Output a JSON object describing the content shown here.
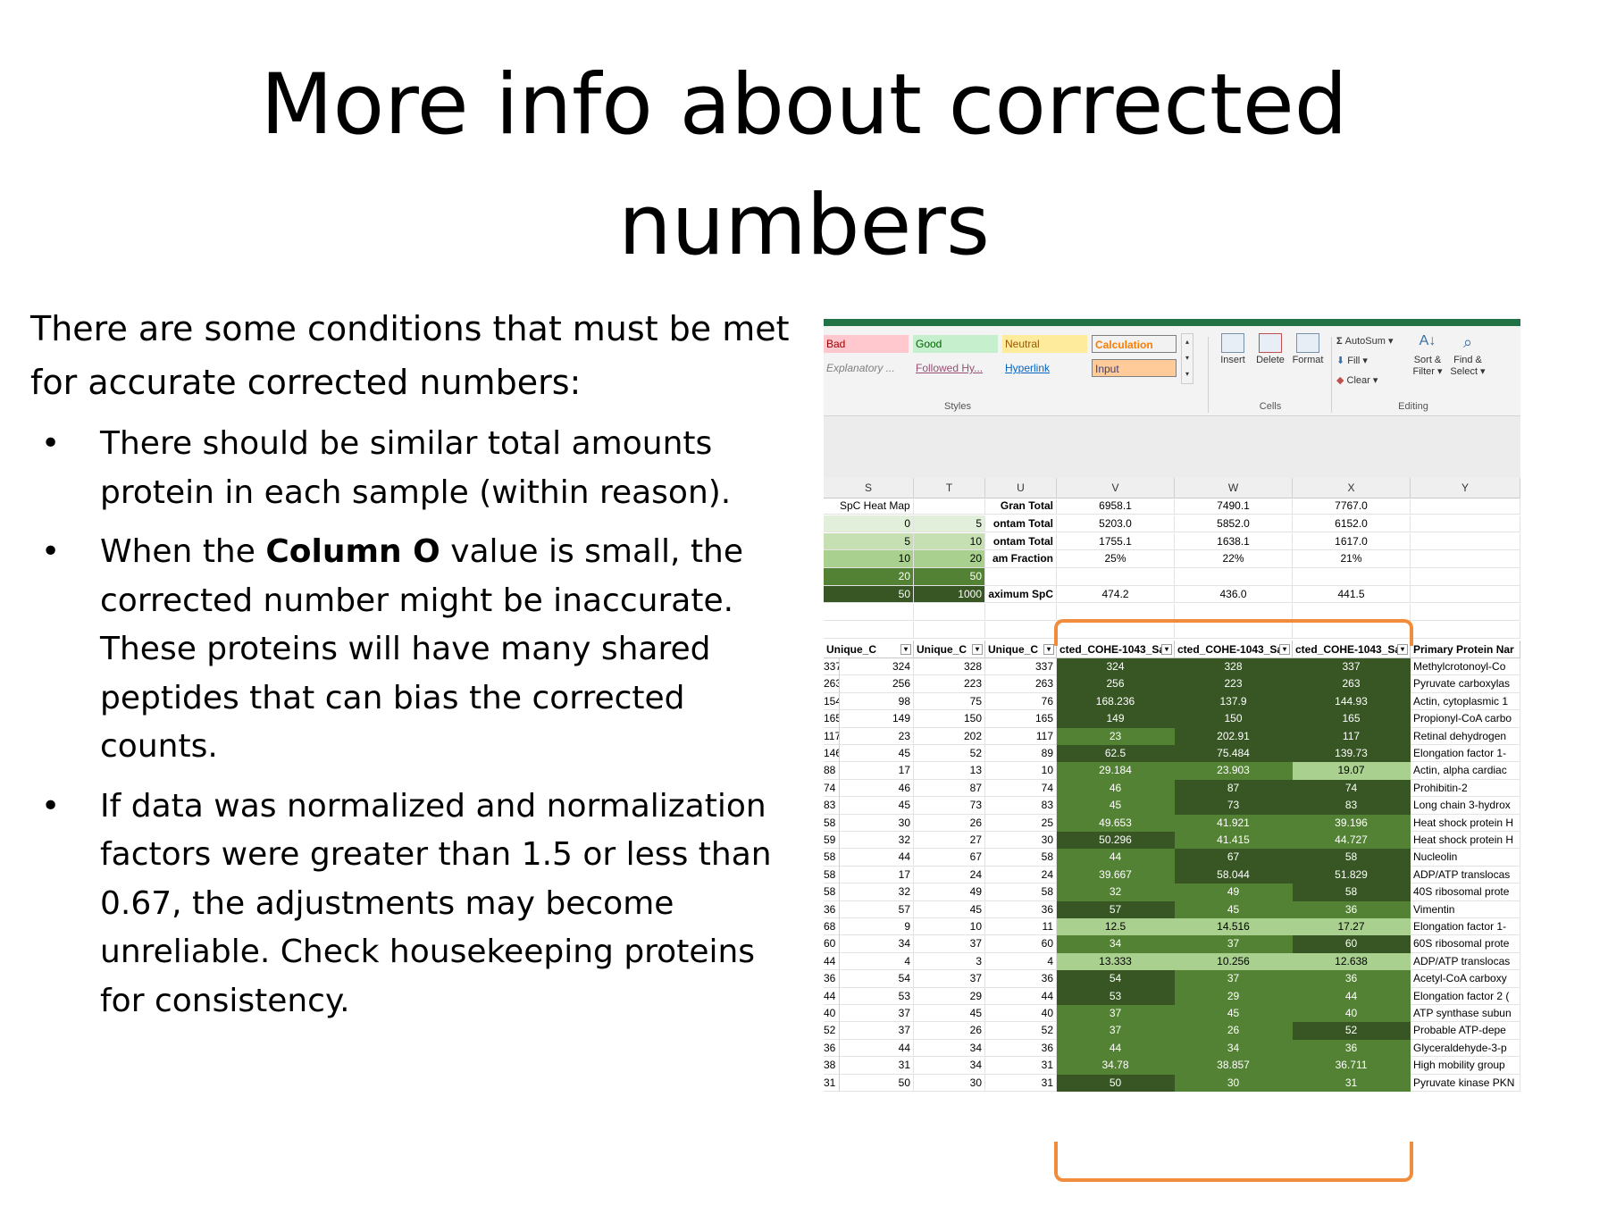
{
  "title": {
    "line1": "More info about corrected",
    "line2": "numbers"
  },
  "intro": "There are some conditions that must be met for accurate corrected numbers:",
  "bullets": {
    "b1": "There should be similar total amounts protein in each sample (within reason).",
    "b2_pre": "When the ",
    "b2_bold": "Column O",
    "b2_post": " value is small, the corrected number might be inaccurate. These proteins will have many shared peptides that can bias the corrected counts.",
    "b3": "If data was normalized and normalization factors were greater than 1.5 or less than 0.67, the adjustments may become unreliable.  Check housekeeping proteins for consistency.",
    "marker": "•"
  },
  "ribbon": {
    "styles": {
      "bad": "Bad",
      "good": "Good",
      "neutral": "Neutral",
      "calculation": "Calculation",
      "explanatory": "Explanatory ...",
      "followed": "Followed Hy...",
      "hyperlink": "Hyperlink",
      "input": "Input",
      "group_label": "Styles"
    },
    "cells": {
      "insert": "Insert",
      "delete": "Delete",
      "format": "Format",
      "group_label": "Cells"
    },
    "editing": {
      "autosum": "AutoSum",
      "fill": "Fill",
      "clear": "Clear",
      "sort": "Sort &",
      "sort2": "Filter",
      "find": "Find &",
      "find2": "Select",
      "group_label": "Editing"
    }
  },
  "colors": {
    "accent": "#217346",
    "bracket": "#f18c3c",
    "heat_dark": "#375623",
    "heat_mid": "#548235",
    "heat_light": "#a9d08e",
    "heat_pale": "#c6e0b4",
    "heat_palest": "#e2efda"
  },
  "columns": [
    "S",
    "T",
    "U",
    "V",
    "W",
    "X",
    "Y"
  ],
  "summary": {
    "heatmap_label": "SpC Heat Map",
    "labels": [
      "Gran Total",
      "ontam Total",
      "ontam Total",
      "am Fraction",
      "",
      "aximum SpC"
    ],
    "V": [
      "6958.1",
      "5203.0",
      "1755.1",
      "25%",
      "",
      "474.2"
    ],
    "W": [
      "7490.1",
      "5852.0",
      "1638.1",
      "22%",
      "",
      "436.0"
    ],
    "X": [
      "7767.0",
      "6152.0",
      "1617.0",
      "21%",
      "",
      "441.5"
    ],
    "heat_S": [
      "0",
      "5",
      "10",
      "20",
      "50"
    ],
    "heat_T": [
      "5",
      "10",
      "20",
      "50",
      "1000"
    ]
  },
  "table_headers": [
    "Unique_C",
    "Unique_C",
    "Unique_C",
    "cted_COHE-1043_Sa",
    "cted_COHE-1043_Sa",
    "cted_COHE-1043_Sa",
    "Primary Protein Nar"
  ],
  "rows": [
    [
      "337",
      "324",
      "328",
      "337",
      "324",
      "328",
      "337",
      "Methylcrotonoyl-Co"
    ],
    [
      "263",
      "256",
      "223",
      "263",
      "256",
      "223",
      "263",
      "Pyruvate carboxylas"
    ],
    [
      "154",
      "98",
      "75",
      "76",
      "168.236",
      "137.9",
      "144.93",
      "Actin, cytoplasmic 1"
    ],
    [
      "165",
      "149",
      "150",
      "165",
      "149",
      "150",
      "165",
      "Propionyl-CoA carbo"
    ],
    [
      "117",
      "23",
      "202",
      "117",
      "23",
      "202.91",
      "117",
      "Retinal dehydrogen"
    ],
    [
      "146",
      "45",
      "52",
      "89",
      "62.5",
      "75.484",
      "139.73",
      "Elongation factor 1-"
    ],
    [
      "88",
      "17",
      "13",
      "10",
      "29.184",
      "23.903",
      "19.07",
      "Actin, alpha cardiac"
    ],
    [
      "74",
      "46",
      "87",
      "74",
      "46",
      "87",
      "74",
      "Prohibitin-2"
    ],
    [
      "83",
      "45",
      "73",
      "83",
      "45",
      "73",
      "83",
      "Long chain 3-hydrox"
    ],
    [
      "58",
      "30",
      "26",
      "25",
      "49.653",
      "41.921",
      "39.196",
      "Heat shock protein H"
    ],
    [
      "59",
      "32",
      "27",
      "30",
      "50.296",
      "41.415",
      "44.727",
      "Heat shock protein H"
    ],
    [
      "58",
      "44",
      "67",
      "58",
      "44",
      "67",
      "58",
      "Nucleolin"
    ],
    [
      "58",
      "17",
      "24",
      "24",
      "39.667",
      "58.044",
      "51.829",
      "ADP/ATP translocas"
    ],
    [
      "58",
      "32",
      "49",
      "58",
      "32",
      "49",
      "58",
      "40S ribosomal prote"
    ],
    [
      "36",
      "57",
      "45",
      "36",
      "57",
      "45",
      "36",
      "Vimentin"
    ],
    [
      "68",
      "9",
      "10",
      "11",
      "12.5",
      "14.516",
      "17.27",
      "Elongation factor 1-"
    ],
    [
      "60",
      "34",
      "37",
      "60",
      "34",
      "37",
      "60",
      "60S ribosomal prote"
    ],
    [
      "44",
      "4",
      "3",
      "4",
      "13.333",
      "10.256",
      "12.638",
      "ADP/ATP translocas"
    ],
    [
      "36",
      "54",
      "37",
      "36",
      "54",
      "37",
      "36",
      "Acetyl-CoA carboxy"
    ],
    [
      "44",
      "53",
      "29",
      "44",
      "53",
      "29",
      "44",
      "Elongation factor 2 ("
    ],
    [
      "40",
      "37",
      "45",
      "40",
      "37",
      "45",
      "40",
      "ATP synthase subun"
    ],
    [
      "52",
      "37",
      "26",
      "52",
      "37",
      "26",
      "52",
      "Probable ATP-depe"
    ],
    [
      "36",
      "44",
      "34",
      "36",
      "44",
      "34",
      "36",
      "Glyceraldehyde-3-p"
    ],
    [
      "38",
      "31",
      "34",
      "31",
      "34.78",
      "38.857",
      "36.711",
      "High mobility group"
    ],
    [
      "31",
      "50",
      "30",
      "31",
      "50",
      "30",
      "31",
      "Pyruvate kinase PKN"
    ]
  ]
}
